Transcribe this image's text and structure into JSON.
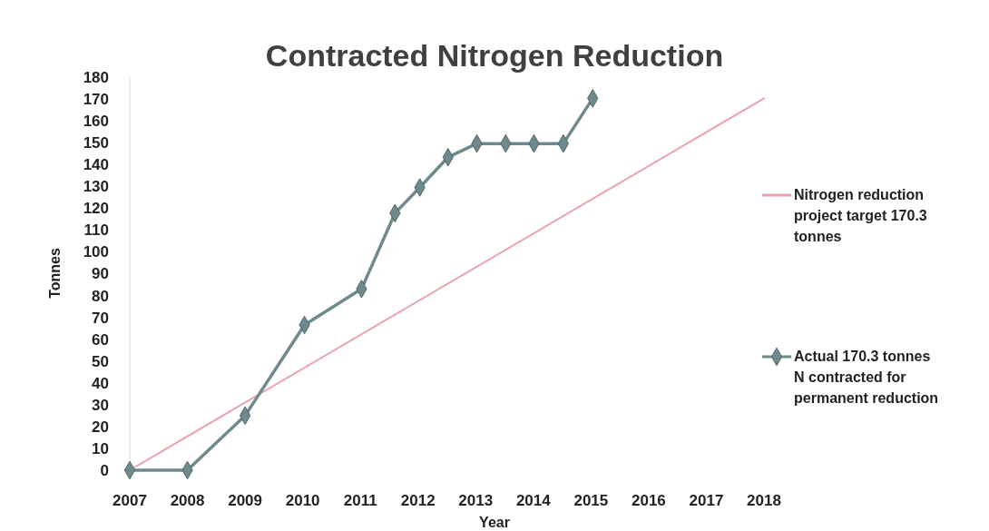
{
  "chart_data": {
    "type": "line",
    "title": "Contracted Nitrogen Reduction",
    "xlabel": "Year",
    "ylabel": "Tonnes",
    "xlim": [
      2007,
      2018
    ],
    "xticks": [
      2007,
      2008,
      2009,
      2010,
      2011,
      2012,
      2013,
      2014,
      2015,
      2016,
      2017,
      2018
    ],
    "ylim": [
      0,
      180
    ],
    "yticks": [
      0,
      10,
      20,
      30,
      40,
      50,
      60,
      70,
      80,
      90,
      100,
      110,
      120,
      130,
      140,
      150,
      160,
      170,
      180
    ],
    "grid": false,
    "legend": "right",
    "series": [
      {
        "name": "Nitrogen reduction project target 170.3 tonnes",
        "color": "#eba3ad",
        "marker": "none",
        "x": [
          2007,
          2018
        ],
        "values": [
          0,
          170.3
        ]
      },
      {
        "name": "Actual 170.3 tonnes N contracted for permanent reduction",
        "color": "#6f8a8c",
        "marker": "diamond",
        "x": [
          2007,
          2008,
          2009,
          2010.03,
          2011.02,
          2011.6,
          2012.03,
          2012.52,
          2013.02,
          2013.52,
          2014.01,
          2014.52,
          2015.03
        ],
        "values": [
          0,
          0,
          25,
          66.5,
          83,
          117.7,
          129.5,
          143.3,
          149.6,
          149.6,
          149.6,
          149.6,
          170.3
        ]
      }
    ]
  }
}
